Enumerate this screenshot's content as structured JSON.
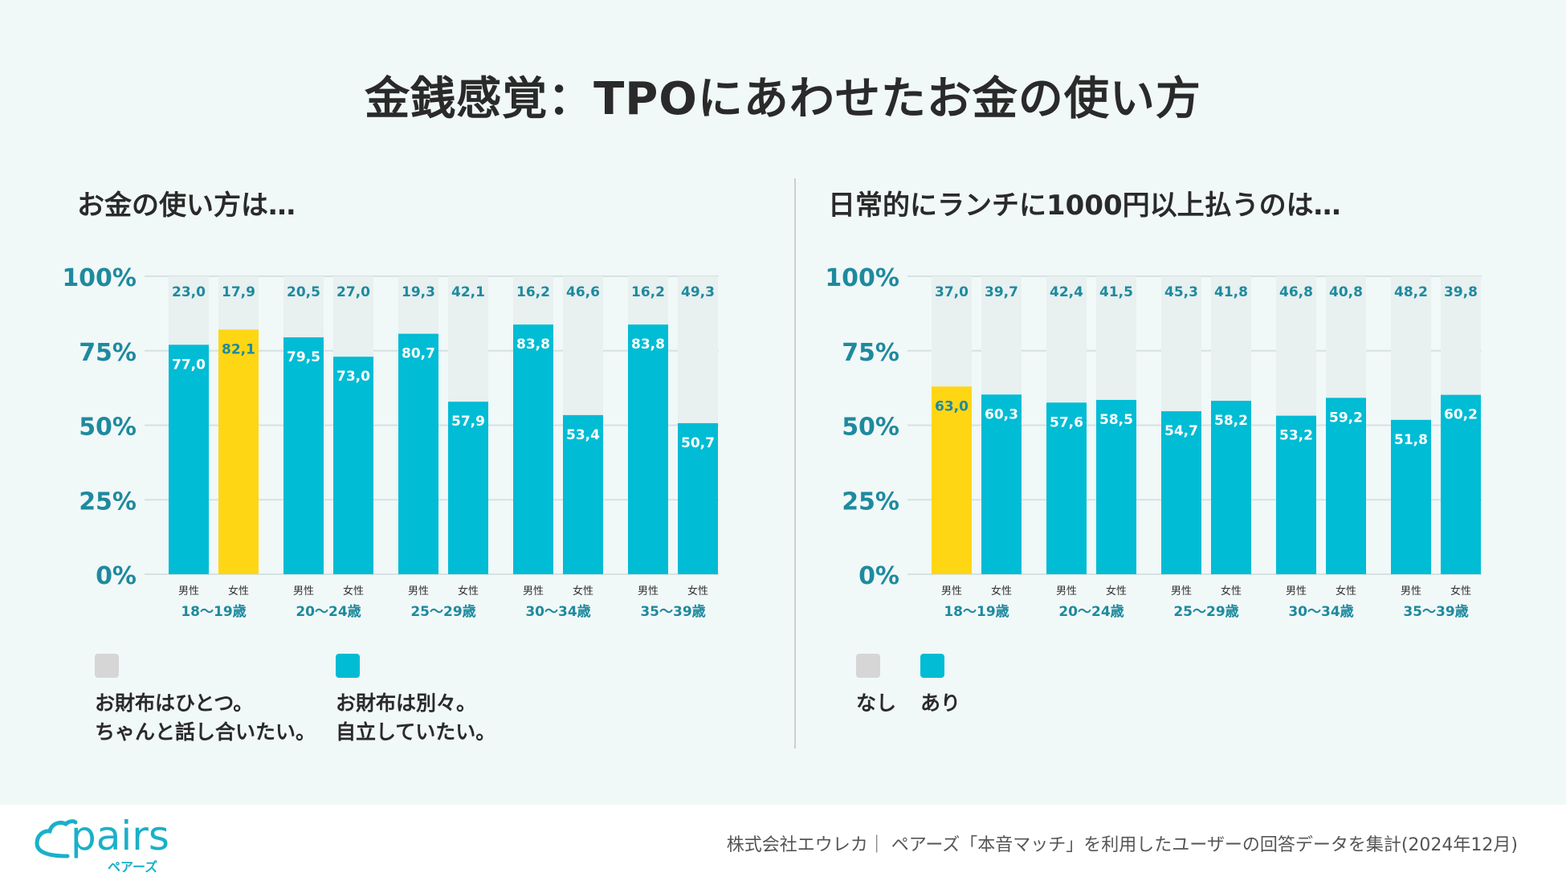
{
  "title": "金銭感覚：TPOにあわせたお金の使い方",
  "colors": {
    "teal": "#00bcd4",
    "highlight": "#ffd614",
    "remainder": "#e8f0f0",
    "axis_text": "#1e8a9e",
    "label_teal": "#1e8a9e",
    "legend_gray": "#d6d6d6"
  },
  "chart_data": [
    {
      "type": "bar",
      "title": "お金の使い方は…",
      "stacked": true,
      "ylim": [
        0,
        100
      ],
      "y_ticks": [
        "0%",
        "25%",
        "50%",
        "75%",
        "100%"
      ],
      "groups": [
        "18〜19歳",
        "20〜24歳",
        "25〜29歳",
        "30〜34歳",
        "35〜39歳"
      ],
      "sub_categories": [
        "男性",
        "女性"
      ],
      "highlight": {
        "group": 0,
        "sub": 1
      },
      "series": [
        {
          "name": "お財布はひとつ。ちゃんと話し合いたい。",
          "values": [
            [
              23.0,
              17.9
            ],
            [
              20.5,
              27.0
            ],
            [
              19.3,
              42.1
            ],
            [
              16.2,
              46.6
            ],
            [
              16.2,
              49.3
            ]
          ],
          "labels": [
            [
              "23,0",
              "17,9"
            ],
            [
              "20,5",
              "27,0"
            ],
            [
              "19,3",
              "42,1"
            ],
            [
              "16,2",
              "46,6"
            ],
            [
              "16,2",
              "49,3"
            ]
          ]
        },
        {
          "name": "お財布は別々。自立していたい。",
          "values": [
            [
              77.0,
              82.1
            ],
            [
              79.5,
              73.0
            ],
            [
              80.7,
              57.9
            ],
            [
              83.8,
              53.4
            ],
            [
              83.8,
              50.7
            ]
          ],
          "labels": [
            [
              "77,0",
              "82,1"
            ],
            [
              "79,5",
              "73,0"
            ],
            [
              "80,7",
              "57,9"
            ],
            [
              "83,8",
              "53,4"
            ],
            [
              "83,8",
              "50,7"
            ]
          ]
        }
      ],
      "legend": [
        {
          "lines": [
            "お財布はひとつ。",
            "ちゃんと話し合いたい。"
          ],
          "color": "#d6d6d6"
        },
        {
          "lines": [
            "お財布は別々。",
            "自立していたい。"
          ],
          "color": "#00bcd4"
        }
      ]
    },
    {
      "type": "bar",
      "title": "日常的にランチに1000円以上払うのは…",
      "stacked": true,
      "ylim": [
        0,
        100
      ],
      "y_ticks": [
        "0%",
        "25%",
        "50%",
        "75%",
        "100%"
      ],
      "groups": [
        "18〜19歳",
        "20〜24歳",
        "25〜29歳",
        "30〜34歳",
        "35〜39歳"
      ],
      "sub_categories": [
        "男性",
        "女性"
      ],
      "highlight": {
        "group": 0,
        "sub": 0
      },
      "series": [
        {
          "name": "なし",
          "values": [
            [
              37.0,
              39.7
            ],
            [
              42.4,
              41.5
            ],
            [
              45.3,
              41.8
            ],
            [
              46.8,
              40.8
            ],
            [
              48.2,
              39.8
            ]
          ],
          "labels": [
            [
              "37,0",
              "39,7"
            ],
            [
              "42,4",
              "41,5"
            ],
            [
              "45,3",
              "41,8"
            ],
            [
              "46,8",
              "40,8"
            ],
            [
              "48,2",
              "39,8"
            ]
          ]
        },
        {
          "name": "あり",
          "values": [
            [
              63.0,
              60.3
            ],
            [
              57.6,
              58.5
            ],
            [
              54.7,
              58.2
            ],
            [
              53.2,
              59.2
            ],
            [
              51.8,
              60.2
            ]
          ],
          "labels": [
            [
              "63,0",
              "60,3"
            ],
            [
              "57,6",
              "58,5"
            ],
            [
              "54,7",
              "58,2"
            ],
            [
              "53,2",
              "59,2"
            ],
            [
              "51,8",
              "60,2"
            ]
          ]
        }
      ],
      "legend": [
        {
          "lines": [
            "なし"
          ],
          "color": "#d6d6d6"
        },
        {
          "lines": [
            "あり"
          ],
          "color": "#00bcd4"
        }
      ]
    }
  ],
  "footer": {
    "logo_text": "pairs",
    "logo_sub": "ペアーズ",
    "source": "株式会社エウレカ｜ ペアーズ「本音マッチ」を利用したユーザーの回答データを集計(2024年12月)"
  }
}
